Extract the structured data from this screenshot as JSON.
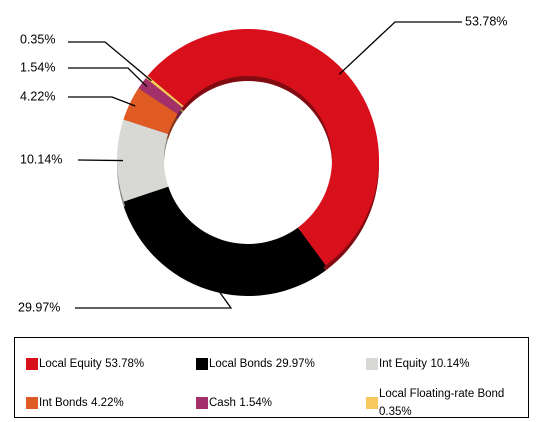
{
  "chart_data": {
    "type": "pie",
    "donut": true,
    "categories": [
      "Local Equity",
      "Local Bonds",
      "Int Equity",
      "Int Bonds",
      "Cash",
      "Local Floating-rate Bond"
    ],
    "values": [
      53.78,
      29.97,
      10.14,
      4.22,
      1.54,
      0.35
    ],
    "value_labels": [
      "53.78%",
      "29.97%",
      "10.14%",
      "4.22%",
      "1.54%",
      "0.35%"
    ],
    "colors": [
      "#d8101c",
      "#000000",
      "#d8d8d5",
      "#e05a24",
      "#a3306a",
      "#f7c95c"
    ],
    "legend": "bottom"
  }
}
